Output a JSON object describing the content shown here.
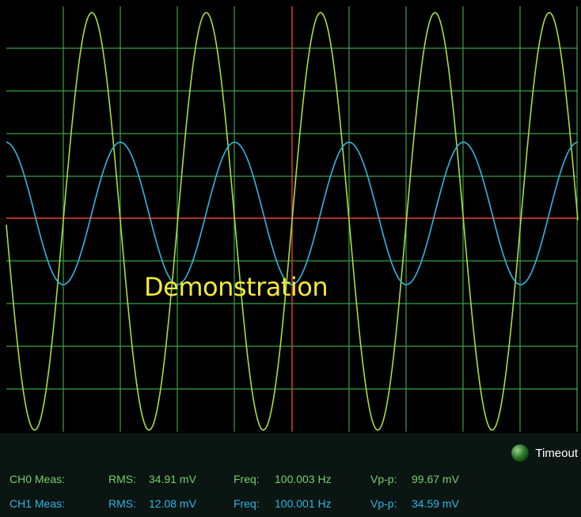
{
  "scope": {
    "overlay_text": "Demonstration",
    "colors": {
      "background": "#000000",
      "grid": "#3aa14a",
      "crosshair": "#e6432f",
      "ch0_trace": "#a6e03a",
      "ch1_trace": "#31b7e6"
    }
  },
  "status": {
    "timeout_label": "Timeout",
    "led_color": "#2b7a2a"
  },
  "measurements": {
    "ch0": {
      "label": "CH0 Meas:",
      "rms_label": "RMS:",
      "rms_value": "34.91 mV",
      "freq_label": "Freq:",
      "freq_value": "100.003 Hz",
      "vpp_label": "Vp-p:",
      "vpp_value": "99.67 mV"
    },
    "ch1": {
      "label": "CH1 Meas:",
      "rms_label": "RMS:",
      "rms_value": "12.08 mV",
      "freq_label": "Freq:",
      "freq_value": "100.001 Hz",
      "vpp_label": "Vp-p:",
      "vpp_value": "34.59 mV"
    }
  }
}
